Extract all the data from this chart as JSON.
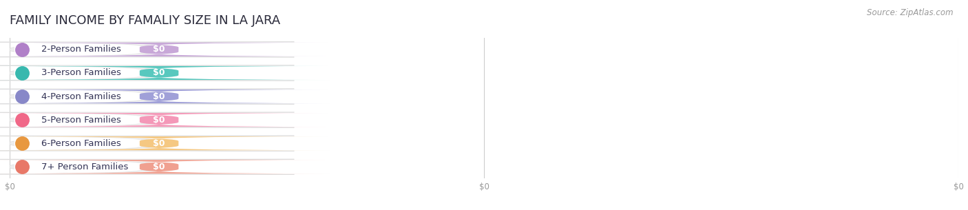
{
  "title": "FAMILY INCOME BY FAMALIY SIZE IN LA JARA",
  "source": "Source: ZipAtlas.com",
  "categories": [
    "2-Person Families",
    "3-Person Families",
    "4-Person Families",
    "5-Person Families",
    "6-Person Families",
    "7+ Person Families"
  ],
  "values": [
    0,
    0,
    0,
    0,
    0,
    0
  ],
  "bar_colors": [
    "#c8a8d8",
    "#58c8be",
    "#a0a0d8",
    "#f498b8",
    "#f5c882",
    "#f0a090"
  ],
  "dot_colors": [
    "#b080c8",
    "#38b8ae",
    "#8888c8",
    "#f06888",
    "#e89840",
    "#e87868"
  ],
  "bar_bg_color": "#eeeeee",
  "bar_outline_color": "#dddddd",
  "white_section_color": "#ffffff",
  "background_color": "#ffffff",
  "title_fontsize": 13,
  "label_fontsize": 9.5,
  "value_fontsize": 9,
  "source_fontsize": 8.5,
  "grid_color": "#cccccc",
  "tick_color": "#999999",
  "title_color": "#2a2a3a",
  "label_color": "#333355"
}
